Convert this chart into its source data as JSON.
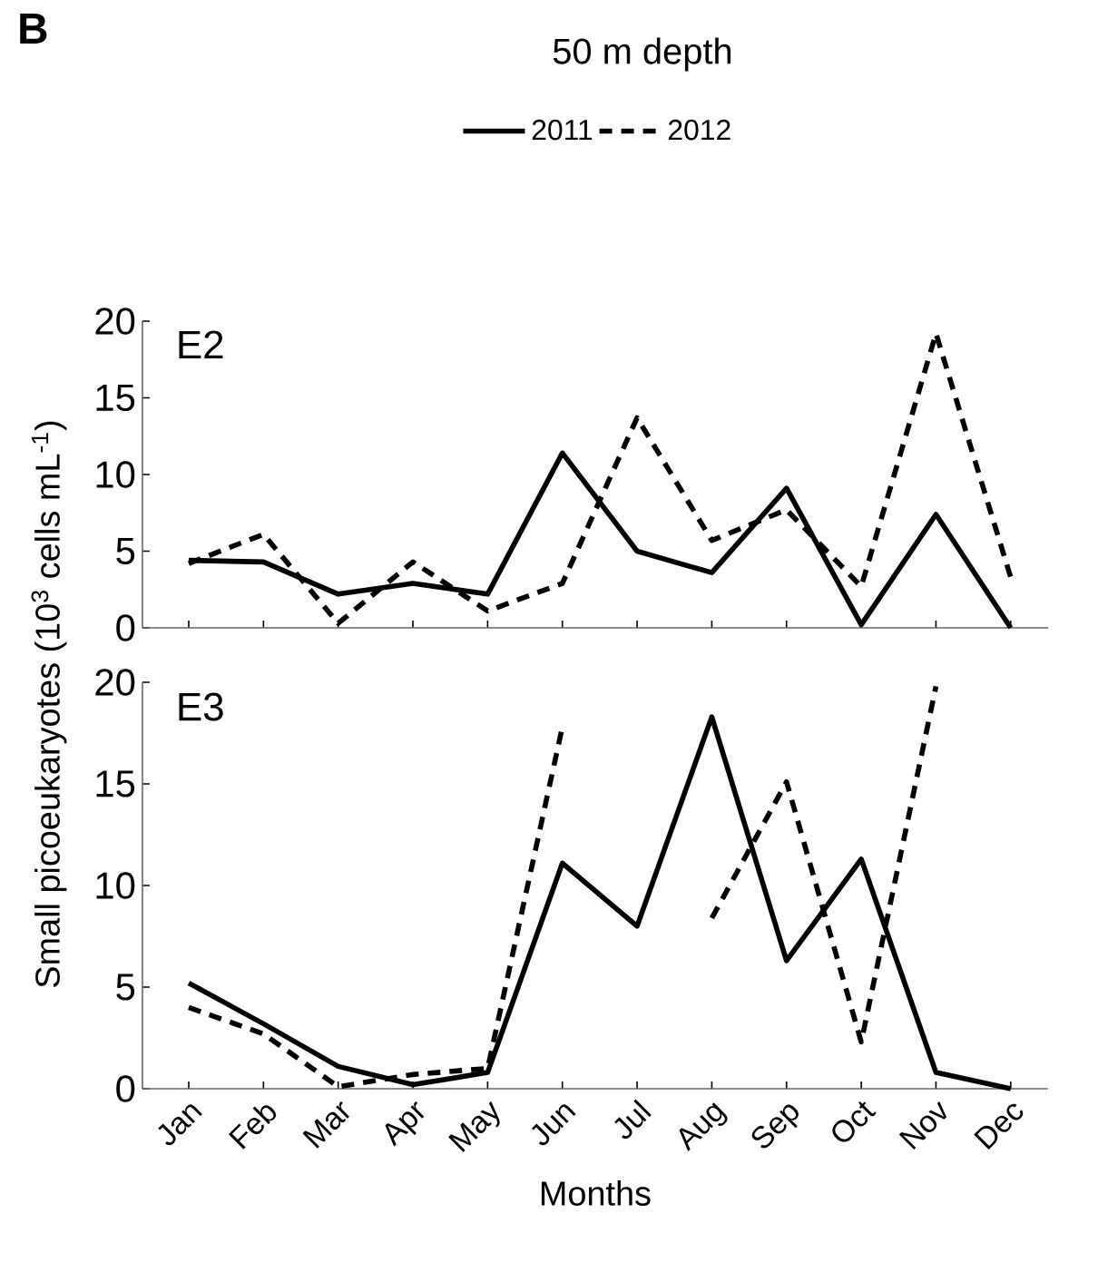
{
  "chart_data": [
    {
      "type": "line",
      "title": "50 m depth",
      "annotations": [
        "B",
        "E2"
      ],
      "categories": [
        null,
        null,
        null,
        null,
        null,
        null,
        null,
        null,
        null,
        null,
        null,
        null
      ],
      "ylim": [
        0,
        20
      ],
      "yticks": [
        0,
        5,
        10,
        15,
        20
      ],
      "tick_labels": "y",
      "legend": "top",
      "marker": "none",
      "series": [
        {
          "name": "2011",
          "color": "#000000",
          "line_style": "solid",
          "values": [
            4.4,
            4.3,
            2.2,
            2.9,
            2.2,
            11.4,
            5.0,
            3.6,
            9.1,
            0.2,
            7.4,
            0
          ]
        },
        {
          "name": "2012",
          "color": "#000000",
          "line_style": "dashed",
          "values": [
            4.2,
            6.1,
            0.3,
            4.3,
            1.1,
            2.9,
            13.7,
            5.7,
            7.7,
            2.7,
            19.2,
            3.3
          ]
        }
      ]
    },
    {
      "type": "line",
      "annotations": [
        "E3"
      ],
      "xlabel": "Months",
      "ylabel": "Small picoeukaryotes (10$^{3}$ cells mL$^{-1}$)",
      "categories": [
        "Jan",
        "Feb",
        "Mar",
        "Apr",
        "May",
        "Jun",
        "Jul",
        "Aug",
        "Sep",
        "Oct",
        "Nov",
        "Dec"
      ],
      "ylim": [
        0,
        20
      ],
      "yticks": [
        0,
        5,
        10,
        15,
        20
      ],
      "marker": "none",
      "series": [
        {
          "color": "#000000",
          "line_style": "solid",
          "values": [
            5.2,
            3.2,
            1.1,
            0.2,
            0.8,
            11.1,
            8.0,
            18.3,
            6.3,
            11.3,
            0.8,
            0
          ]
        },
        {
          "color": "#000000",
          "line_style": "dashed",
          "values": [
            4.0,
            2.7,
            0.1,
            0.7,
            1.0,
            17.8,
            null,
            8.4,
            15.1,
            2.3,
            19.8,
            null
          ]
        }
      ]
    }
  ]
}
